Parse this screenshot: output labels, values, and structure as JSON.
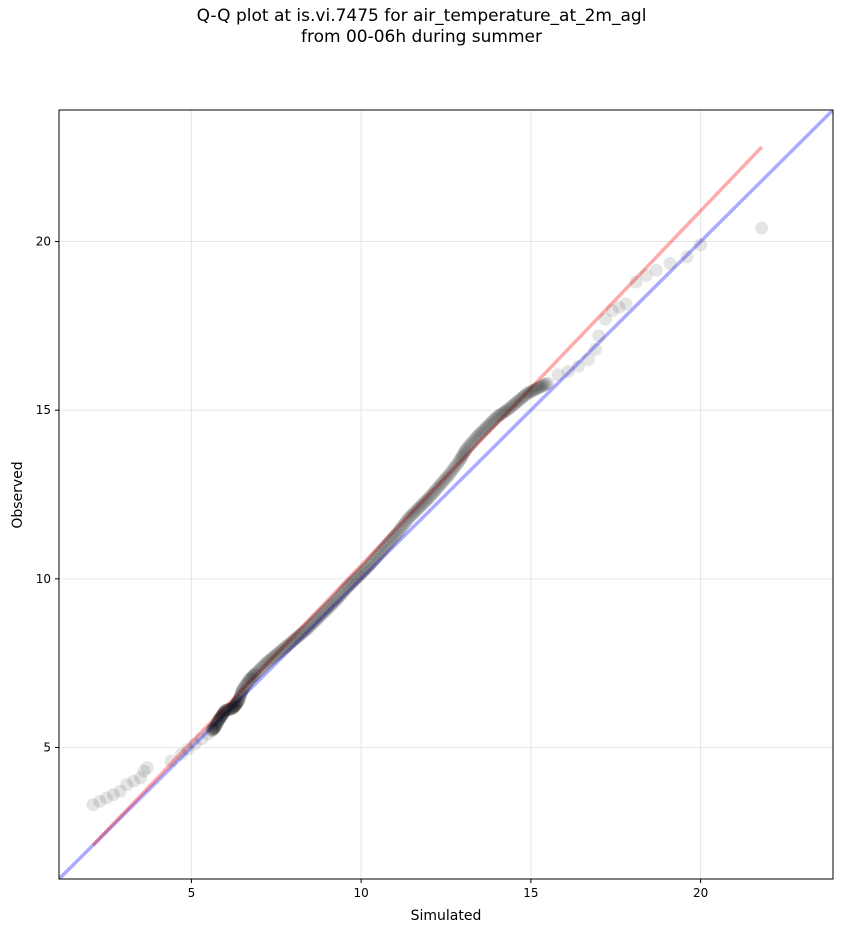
{
  "chart_data": {
    "type": "scatter",
    "title": [
      "Q-Q plot at is.vi.7475 for air_temperature_at_2m_agl",
      "from 00-06h during summer"
    ],
    "xlabel": "Simulated",
    "ylabel": "Observed",
    "xlim": [
      1.1,
      23.9
    ],
    "ylim": [
      1.1,
      23.9
    ],
    "xticks": [
      5,
      10,
      15,
      20
    ],
    "yticks": [
      5,
      10,
      15,
      20
    ],
    "grid": true,
    "marker_color": "#000000",
    "identity_line": {
      "from": [
        1.1,
        1.1
      ],
      "to": [
        23.9,
        23.9
      ],
      "color": "#0000ff"
    },
    "fit_line": {
      "from": [
        2.1,
        2.1
      ],
      "to": [
        21.8,
        22.8
      ],
      "color": "#ff0000"
    },
    "points": [
      [
        2.1,
        3.3
      ],
      [
        2.3,
        3.4
      ],
      [
        2.5,
        3.5
      ],
      [
        2.7,
        3.6
      ],
      [
        2.9,
        3.7
      ],
      [
        3.1,
        3.9
      ],
      [
        3.3,
        4.0
      ],
      [
        3.5,
        4.1
      ],
      [
        3.6,
        4.3
      ],
      [
        3.7,
        4.4
      ],
      [
        4.4,
        4.6
      ],
      [
        4.7,
        4.8
      ],
      [
        4.9,
        4.95
      ],
      [
        5.1,
        5.1
      ],
      [
        5.3,
        5.25
      ],
      [
        5.5,
        5.4
      ],
      [
        5.6,
        5.5
      ],
      [
        5.7,
        5.6
      ],
      [
        5.8,
        5.8
      ],
      [
        5.9,
        5.95
      ],
      [
        6.0,
        6.1
      ],
      [
        6.2,
        6.15
      ],
      [
        6.3,
        6.25
      ],
      [
        6.4,
        6.4
      ],
      [
        6.5,
        6.7
      ],
      [
        6.7,
        7.0
      ],
      [
        6.9,
        7.2
      ],
      [
        7.2,
        7.5
      ],
      [
        7.5,
        7.75
      ],
      [
        7.8,
        8.0
      ],
      [
        8.1,
        8.25
      ],
      [
        8.4,
        8.5
      ],
      [
        8.7,
        8.8
      ],
      [
        9.0,
        9.1
      ],
      [
        9.3,
        9.4
      ],
      [
        9.6,
        9.75
      ],
      [
        9.9,
        10.05
      ],
      [
        10.2,
        10.35
      ],
      [
        10.5,
        10.7
      ],
      [
        10.8,
        11.05
      ],
      [
        11.1,
        11.4
      ],
      [
        11.4,
        11.8
      ],
      [
        11.7,
        12.1
      ],
      [
        12.0,
        12.4
      ],
      [
        12.3,
        12.75
      ],
      [
        12.6,
        13.1
      ],
      [
        12.9,
        13.5
      ],
      [
        13.1,
        13.85
      ],
      [
        13.4,
        14.2
      ],
      [
        13.7,
        14.5
      ],
      [
        14.0,
        14.8
      ],
      [
        14.3,
        15.0
      ],
      [
        14.6,
        15.25
      ],
      [
        14.9,
        15.5
      ],
      [
        15.2,
        15.65
      ],
      [
        15.5,
        15.8
      ],
      [
        15.8,
        16.05
      ],
      [
        16.1,
        16.15
      ],
      [
        16.4,
        16.3
      ],
      [
        16.7,
        16.5
      ],
      [
        16.9,
        16.8
      ],
      [
        17.0,
        17.2
      ],
      [
        17.2,
        17.7
      ],
      [
        17.4,
        17.95
      ],
      [
        17.6,
        18.05
      ],
      [
        17.8,
        18.15
      ],
      [
        18.1,
        18.8
      ],
      [
        18.4,
        19.0
      ],
      [
        18.7,
        19.15
      ],
      [
        19.1,
        19.35
      ],
      [
        19.6,
        19.55
      ],
      [
        20.0,
        19.9
      ],
      [
        21.8,
        20.4
      ]
    ]
  }
}
